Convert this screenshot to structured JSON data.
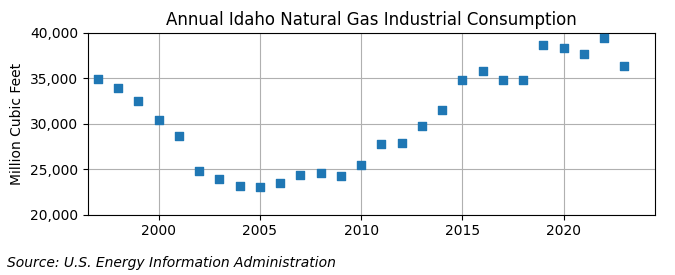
{
  "chart_data": {
    "type": "scatter",
    "title": "Annual Idaho Natural Gas Industrial Consumption",
    "ylabel": "Million Cubic Feet",
    "source": "Source: U.S. Energy Information Administration",
    "x": [
      1997,
      1998,
      1999,
      2000,
      2001,
      2002,
      2003,
      2004,
      2005,
      2006,
      2007,
      2008,
      2009,
      2010,
      2011,
      2012,
      2013,
      2014,
      2015,
      2016,
      2017,
      2018,
      2019,
      2020,
      2021,
      2022,
      2023
    ],
    "values": [
      34900,
      33900,
      32500,
      30400,
      28700,
      24800,
      23900,
      23100,
      23000,
      23500,
      24300,
      24600,
      24200,
      25400,
      27800,
      27900,
      29800,
      31500,
      34800,
      35800,
      34800,
      34800,
      38700,
      38300,
      37700,
      39400,
      36400
    ],
    "marker": "square",
    "xlim": [
      1996.5,
      2024.5
    ],
    "xticks": [
      2000,
      2005,
      2010,
      2015,
      2020
    ],
    "ylim": [
      20000,
      40000
    ],
    "yticks": [
      {
        "value": 20000,
        "label": "20,000"
      },
      {
        "value": 25000,
        "label": "25,000"
      },
      {
        "value": 30000,
        "label": "30,000"
      },
      {
        "value": 35000,
        "label": "35,000"
      },
      {
        "value": 40000,
        "label": "40,000"
      }
    ],
    "grid": true
  }
}
